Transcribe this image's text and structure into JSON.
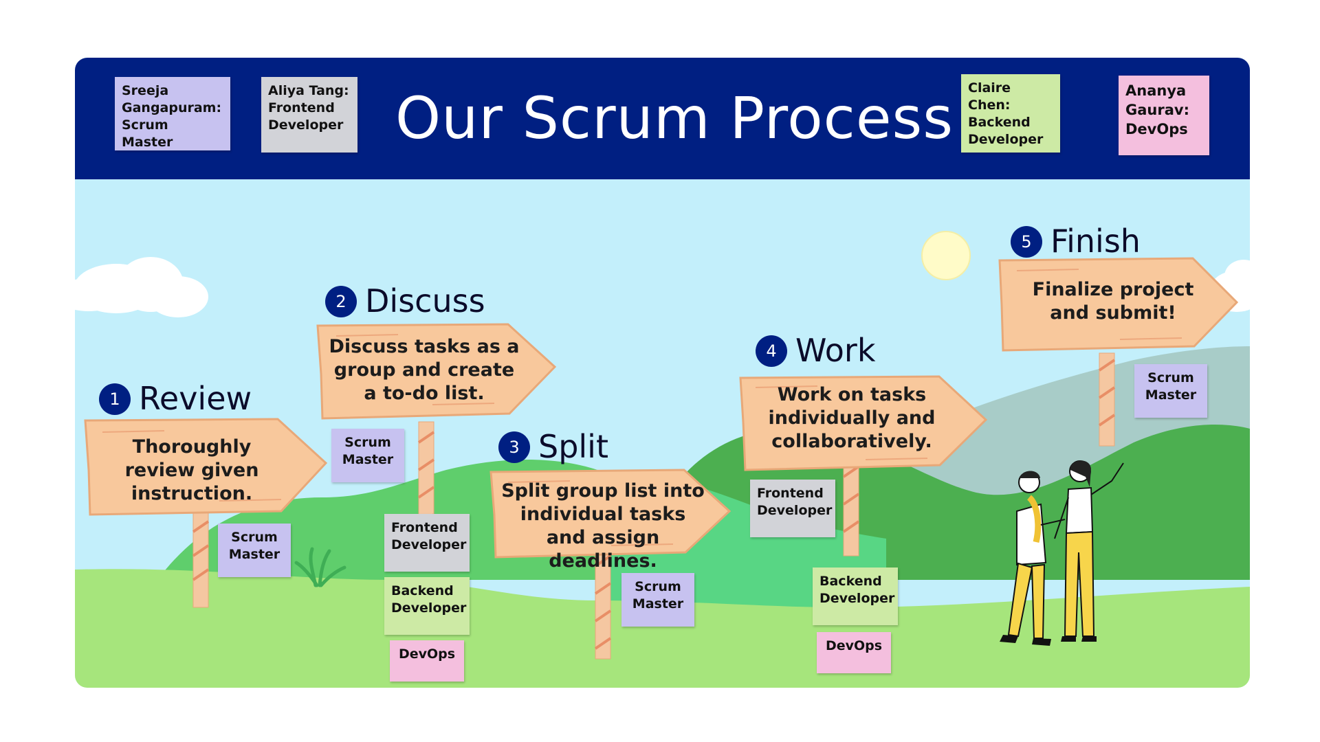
{
  "title": "Our Scrum Process",
  "team": [
    {
      "text": "Sreeja Gangapuram: Scrum Master",
      "color": "#c7c2f0"
    },
    {
      "text": "Aliya Tang: Frontend Developer",
      "color": "#d2d3d8"
    },
    {
      "text": "Claire Chen: Backend Developer",
      "color": "#cdeaa5"
    },
    {
      "text": "Ananya Gaurav: DevOps",
      "color": "#f4bfde"
    }
  ],
  "steps": [
    {
      "number": "1",
      "title": "Review",
      "text": "Thoroughly review given instruction.",
      "notes": [
        "Scrum Master"
      ]
    },
    {
      "number": "2",
      "title": "Discuss",
      "text": "Discuss tasks as a group and create a to-do list.",
      "notes": [
        "Scrum Master",
        "Frontend Developer",
        "Backend Developer",
        "DevOps"
      ]
    },
    {
      "number": "3",
      "title": "Split",
      "text": "Split group list into individual tasks and assign deadlines.",
      "notes": [
        "Scrum Master"
      ]
    },
    {
      "number": "4",
      "title": "Work",
      "text": "Work on tasks individually and collaboratively.",
      "notes": [
        "Frontend Developer",
        "Backend Developer",
        "DevOps"
      ]
    },
    {
      "number": "5",
      "title": "Finish",
      "text": "Finalize project and submit!",
      "notes": [
        "Scrum Master"
      ]
    }
  ],
  "colors": {
    "header": "#001f82",
    "sky": "#c3effb",
    "sign": "#f8c89c",
    "post": "#f5c7a1",
    "scrum_master": "#c7c2f0",
    "frontend": "#d2d3d8",
    "backend": "#cdeaa5",
    "devops": "#f4bfde"
  }
}
